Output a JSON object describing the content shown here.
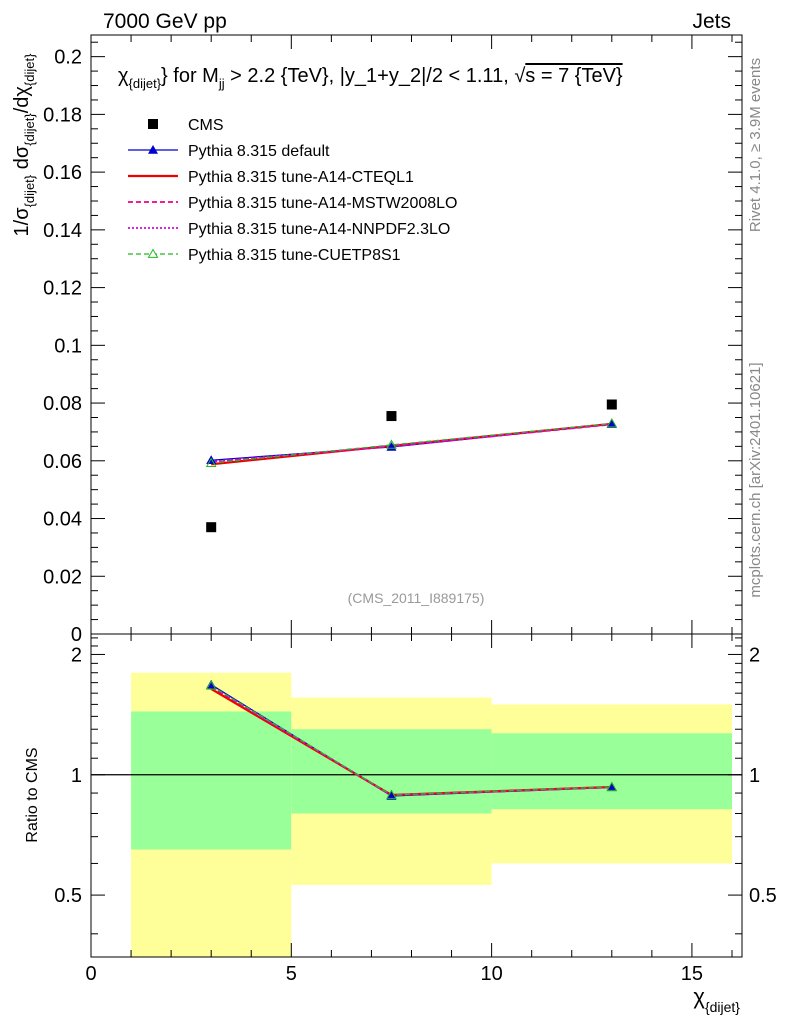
{
  "header": {
    "left": "7000 GeV pp",
    "right": "Jets"
  },
  "side_labels": {
    "rivet": "Rivet 4.1.0, ≥ 3.9M events",
    "mcplots": "mcplots.cern.ch [arXiv:2401.10621]"
  },
  "watermark": "(CMS_2011_I889175)",
  "plot_title": {
    "chi": "χ",
    "chi_sub": "{dijet}",
    "part1": "} for M",
    "m_sub": "jj",
    "part2": " > 2.2 {TeV}, |y_1+y_2|/2 < 1.11, ",
    "sqrt": "√",
    "s_part": "s = 7 {TeV}"
  },
  "y_axis_title": {
    "p1": "1/σ",
    "s1": "{dijet}",
    "p2": " dσ",
    "s2": "{dijet}",
    "p3": "/dχ",
    "s3": "{dijet}"
  },
  "ratio_ylabel": "Ratio to CMS",
  "x_axis_title": {
    "chi": "χ",
    "sub": "{dijet}"
  },
  "colors": {
    "cms": "#000000",
    "default": "#0000cc",
    "cteql1": "#ee0000",
    "mstw": "#ee0088",
    "nnpdf": "#dd00dd",
    "cuetp": "#22bb22",
    "band_yellow": "#ffff99",
    "band_green": "#99ff99"
  },
  "chart_data": {
    "type": "scatter",
    "x": [
      3,
      7.5,
      13
    ],
    "xlim": [
      0,
      16.25
    ],
    "ylim_main": [
      0,
      0.2075
    ],
    "ylim_ratio": [
      0.35,
      2.25
    ],
    "ratio_scale": "log",
    "x_ticks": [
      "0",
      "5",
      "10",
      "15"
    ],
    "y_ticks_main": [
      "0",
      "0.02",
      "0.04",
      "0.06",
      "0.08",
      "0.1",
      "0.12",
      "0.14",
      "0.16",
      "0.18",
      "0.2"
    ],
    "y_ticks_ratio": [
      "0.5",
      "1",
      "2"
    ],
    "legend": [
      {
        "key": "cms",
        "label": "CMS"
      },
      {
        "key": "default",
        "label": "Pythia 8.315 default"
      },
      {
        "key": "cteql1",
        "label": "Pythia 8.315 tune-A14-CTEQL1"
      },
      {
        "key": "mstw",
        "label": "Pythia 8.315 tune-A14-MSTW2008LO"
      },
      {
        "key": "nnpdf",
        "label": "Pythia 8.315 tune-A14-NNPDF2.3LO"
      },
      {
        "key": "cuetp",
        "label": "Pythia 8.315 tune-CUETP8S1"
      }
    ],
    "data": {
      "name": "CMS",
      "values": [
        0.037,
        0.0755,
        0.0795
      ]
    },
    "series": [
      {
        "key": "default",
        "name": "Pythia 8.315 default",
        "values": [
          0.0602,
          0.0648,
          0.0727
        ]
      },
      {
        "key": "cteql1",
        "name": "Pythia 8.315 tune-A14-CTEQL1",
        "values": [
          0.0588,
          0.0652,
          0.0728
        ]
      },
      {
        "key": "mstw",
        "name": "Pythia 8.315 tune-A14-MSTW2008LO",
        "values": [
          0.0595,
          0.065,
          0.0726
        ]
      },
      {
        "key": "nnpdf",
        "name": "Pythia 8.315 tune-A14-NNPDF2.3LO",
        "values": [
          0.0597,
          0.0651,
          0.0727
        ]
      },
      {
        "key": "cuetp",
        "name": "Pythia 8.315 tune-CUETP8S1",
        "values": [
          0.0592,
          0.0655,
          0.0729
        ]
      }
    ],
    "ratio": {
      "default": [
        1.68,
        0.885,
        0.93
      ],
      "cteql1": [
        1.64,
        0.89,
        0.932
      ],
      "mstw": [
        1.66,
        0.888,
        0.93
      ],
      "nnpdf": [
        1.665,
        0.889,
        0.931
      ],
      "cuetp": [
        1.67,
        0.89,
        0.932
      ]
    },
    "bands": [
      {
        "x": [
          1,
          5
        ],
        "yellow": [
          0.3,
          1.8
        ],
        "green": [
          0.65,
          1.44
        ]
      },
      {
        "x": [
          5,
          10
        ],
        "yellow": [
          0.53,
          1.56
        ],
        "green": [
          0.8,
          1.3
        ]
      },
      {
        "x": [
          10,
          16
        ],
        "yellow": [
          0.6,
          1.5
        ],
        "green": [
          0.82,
          1.27
        ]
      }
    ]
  }
}
